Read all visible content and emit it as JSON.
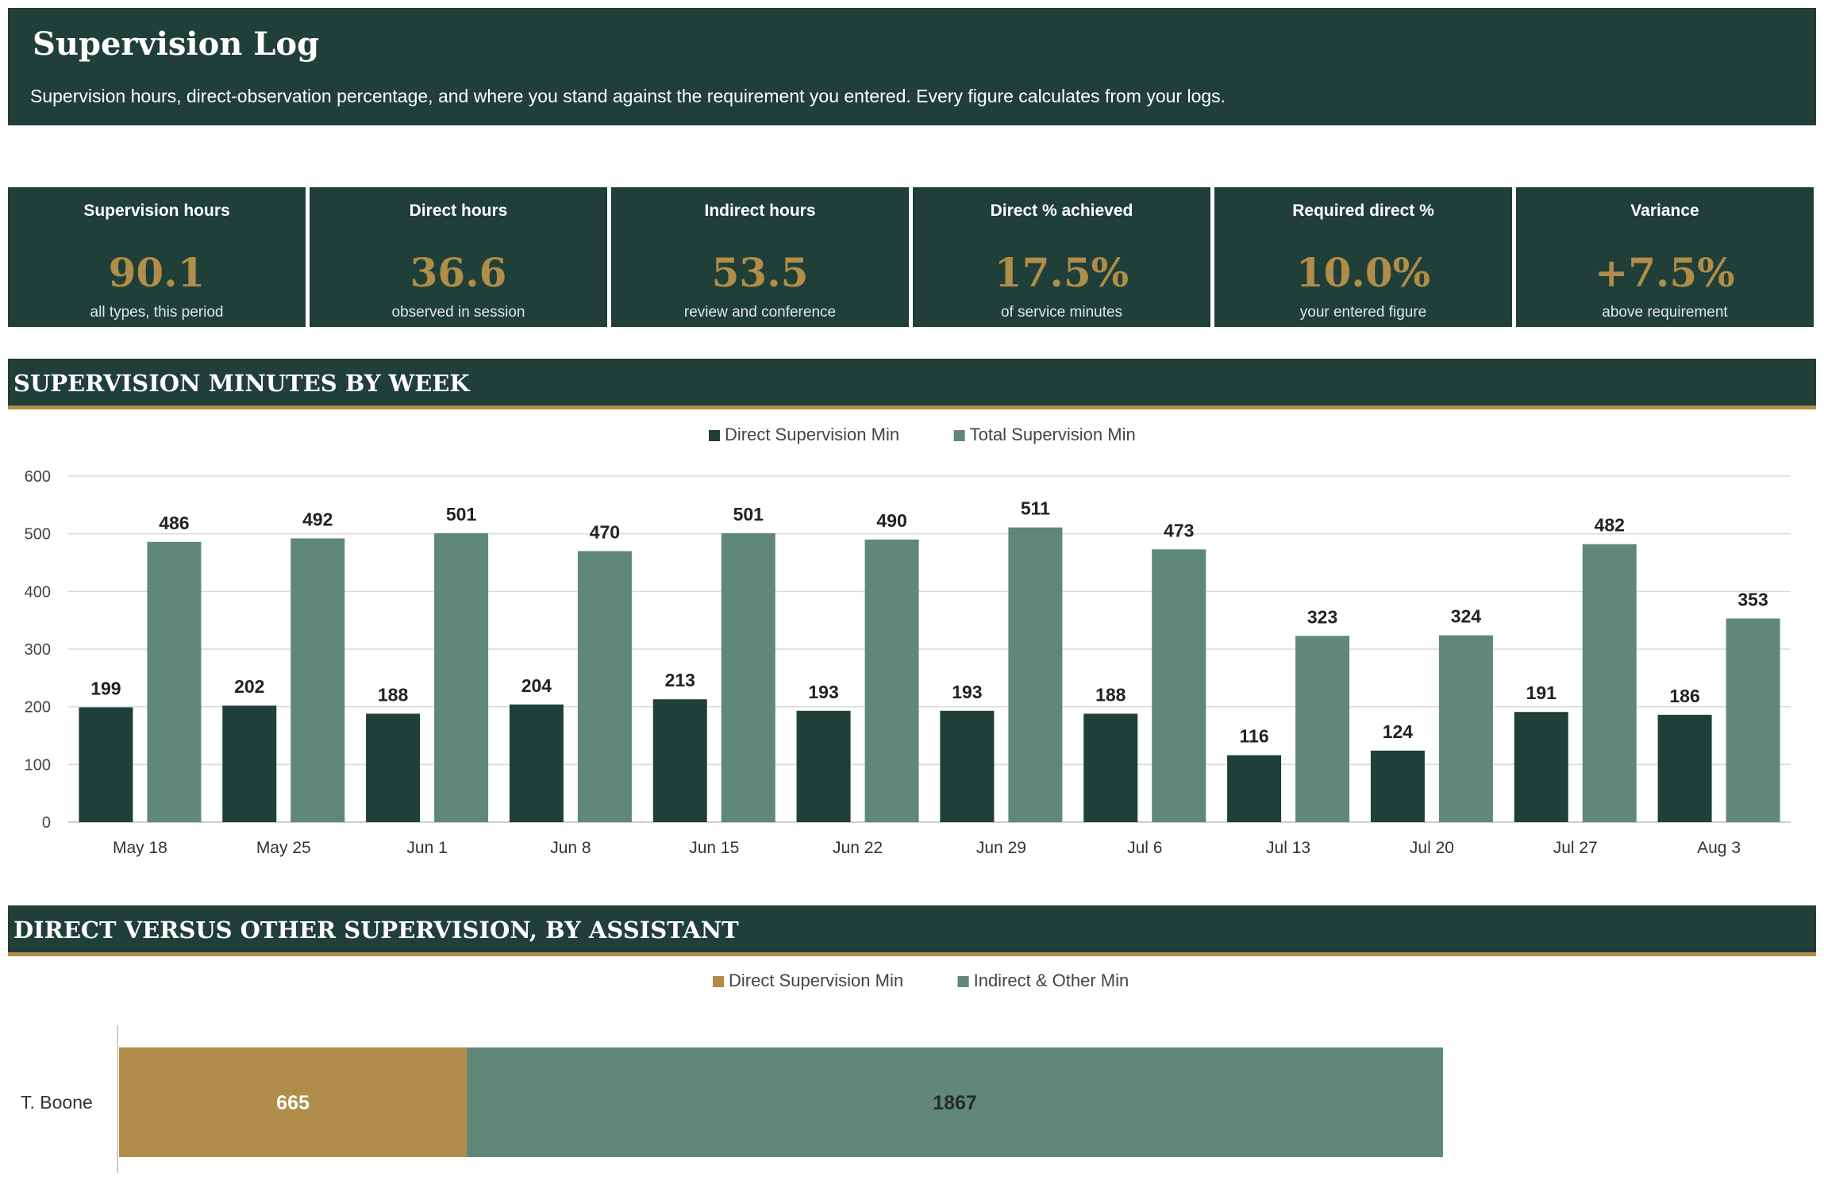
{
  "header": {
    "title": "Supervision Log",
    "subtitle": "Supervision hours, direct-observation percentage, and where you stand against the requirement you entered. Every figure calculates from your logs."
  },
  "kpis": [
    {
      "label": "Supervision hours",
      "value": "90.1",
      "sub": "all types, this period"
    },
    {
      "label": "Direct hours",
      "value": "36.6",
      "sub": "observed in session"
    },
    {
      "label": "Indirect hours",
      "value": "53.5",
      "sub": "review and conference"
    },
    {
      "label": "Direct % achieved",
      "value": "17.5%",
      "sub": "of service minutes"
    },
    {
      "label": "Required direct %",
      "value": "10.0%",
      "sub": "your entered figure"
    },
    {
      "label": "Variance",
      "value": "+7.5%",
      "sub": "above requirement"
    }
  ],
  "sections": {
    "weekly": "SUPERVISION MINUTES BY WEEK",
    "assistant": "DIRECT VERSUS OTHER SUPERVISION, BY ASSISTANT"
  },
  "colors": {
    "dark_green": "#1f3f38",
    "sage": "#5f8878",
    "gold": "#b08d48"
  },
  "chart_data": [
    {
      "type": "bar",
      "title": "",
      "xlabel": "",
      "ylabel": "",
      "categories": [
        "May 18",
        "May 25",
        "Jun 1",
        "Jun 8",
        "Jun 15",
        "Jun 22",
        "Jun 29",
        "Jul 6",
        "Jul 13",
        "Jul 20",
        "Jul 27",
        "Aug 3"
      ],
      "series": [
        {
          "name": "Direct Supervision Min",
          "color": "#1f3f38",
          "values": [
            199,
            202,
            188,
            204,
            213,
            193,
            193,
            188,
            116,
            124,
            191,
            186
          ]
        },
        {
          "name": "Total Supervision Min",
          "color": "#5f8878",
          "values": [
            486,
            492,
            501,
            470,
            501,
            490,
            511,
            473,
            323,
            324,
            482,
            353
          ]
        }
      ],
      "ylim": [
        0,
        600
      ],
      "yticks": [
        0,
        100,
        200,
        300,
        400,
        500,
        600
      ],
      "grid": true,
      "legend": "top-center"
    },
    {
      "type": "bar",
      "orientation": "horizontal",
      "stacked": true,
      "title": "",
      "categories": [
        "T. Boone"
      ],
      "series": [
        {
          "name": "Direct Supervision Min",
          "color": "#b08d48",
          "label_color": "#ffffff",
          "values": [
            665
          ]
        },
        {
          "name": "Indirect & Other Min",
          "color": "#5f8878",
          "label_color": "#2a2a2a",
          "values": [
            1867
          ]
        }
      ],
      "xlim": [
        0,
        3200
      ],
      "legend": "top-center"
    }
  ]
}
